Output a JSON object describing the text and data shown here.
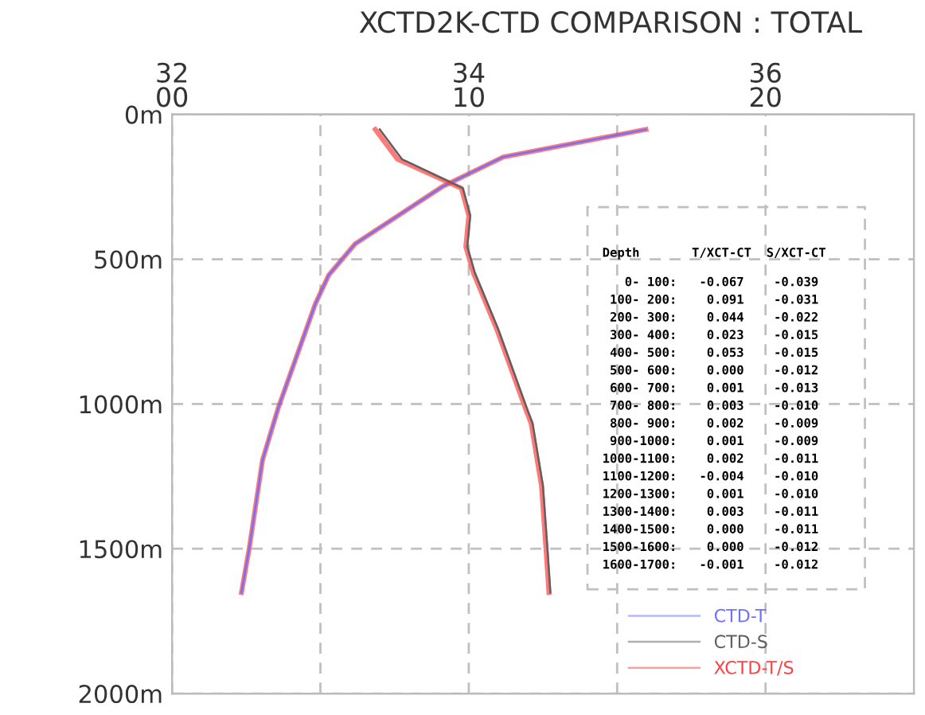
{
  "chart_data": {
    "type": "line",
    "title": "XCTD2K-CTD COMPARISON : TOTAL",
    "series": [
      {
        "name": "CTD-T",
        "color": "#7070ff",
        "x": [
          15.97,
          11.16,
          9.1,
          6.17,
          5.28,
          4.83,
          3.58,
          3.05,
          2.6,
          2.34
        ],
        "values": [
          52,
          147,
          250,
          447,
          555,
          654,
          1013,
          1193,
          1499,
          1651
        ]
      },
      {
        "name": "CTD-S",
        "color": "#606060",
        "axis": "x2",
        "x": [
          33.4,
          33.55,
          33.96,
          34.01,
          33.99,
          34.04,
          34.2,
          34.39,
          34.43,
          34.5,
          34.53,
          34.55
        ],
        "values": [
          52,
          155,
          255,
          349,
          457,
          546,
          744,
          1013,
          1067,
          1283,
          1499,
          1651
        ]
      },
      {
        "name": "XCTD-T/S",
        "color": "#ff4040",
        "x": [
          15.97,
          11.16,
          9.1,
          6.17,
          5.28,
          4.83,
          3.58,
          3.05,
          2.6,
          2.34
        ],
        "values": [
          52,
          147,
          250,
          447,
          555,
          654,
          1013,
          1193,
          1499,
          1651
        ]
      },
      {
        "color": "#ff4040",
        "axis": "x2",
        "x": [
          33.37,
          33.52,
          33.95,
          34.0,
          33.98,
          34.03,
          34.19,
          34.38,
          34.42,
          34.49,
          34.52,
          34.54
        ],
        "values": [
          52,
          155,
          255,
          349,
          457,
          546,
          744,
          1013,
          1067,
          1283,
          1499,
          1651
        ]
      }
    ],
    "xlim": [
      0,
      25
    ],
    "xticks": [
      {
        "value": 0,
        "label": "00"
      },
      {
        "value": 5,
        "label": null
      },
      10,
      {
        "value": 15,
        "label": null
      },
      20
    ],
    "x2lim": [
      32,
      37
    ],
    "x2ticks": [
      32,
      34,
      36
    ],
    "ylim": [
      2000,
      0
    ],
    "yticks": [
      {
        "value": 0,
        "label": "0m"
      },
      {
        "value": 500,
        "label": "500m"
      },
      {
        "value": 1000,
        "label": "1000m"
      },
      {
        "value": 1500,
        "label": "1500m"
      },
      {
        "value": 2000,
        "label": "2000m"
      }
    ],
    "grid": true,
    "legend": "bottom right",
    "line_style": "solid",
    "marker": "none",
    "annotations": [
      "Depth       T/XCT-CT  S/XCT-CT",
      "   0- 100:   -0.067    -0.039",
      " 100- 200:    0.091    -0.031",
      " 200- 300:    0.044    -0.022",
      " 300- 400:    0.023    -0.015",
      " 400- 500:    0.053    -0.015",
      " 500- 600:    0.000    -0.012",
      " 600- 700:    0.001    -0.013",
      " 700- 800:    0.003    -0.010",
      " 800- 900:    0.002    -0.009",
      " 900-1000:    0.001    -0.009",
      "1000-1100:    0.002    -0.011",
      "1100-1200:   -0.004    -0.010",
      "1200-1300:    0.001    -0.010",
      "1300-1400:    0.003    -0.011",
      "1400-1500:    0.000    -0.011",
      "1500-1600:    0.000    -0.012",
      "1600-1700:   -0.001    -0.012"
    ]
  }
}
